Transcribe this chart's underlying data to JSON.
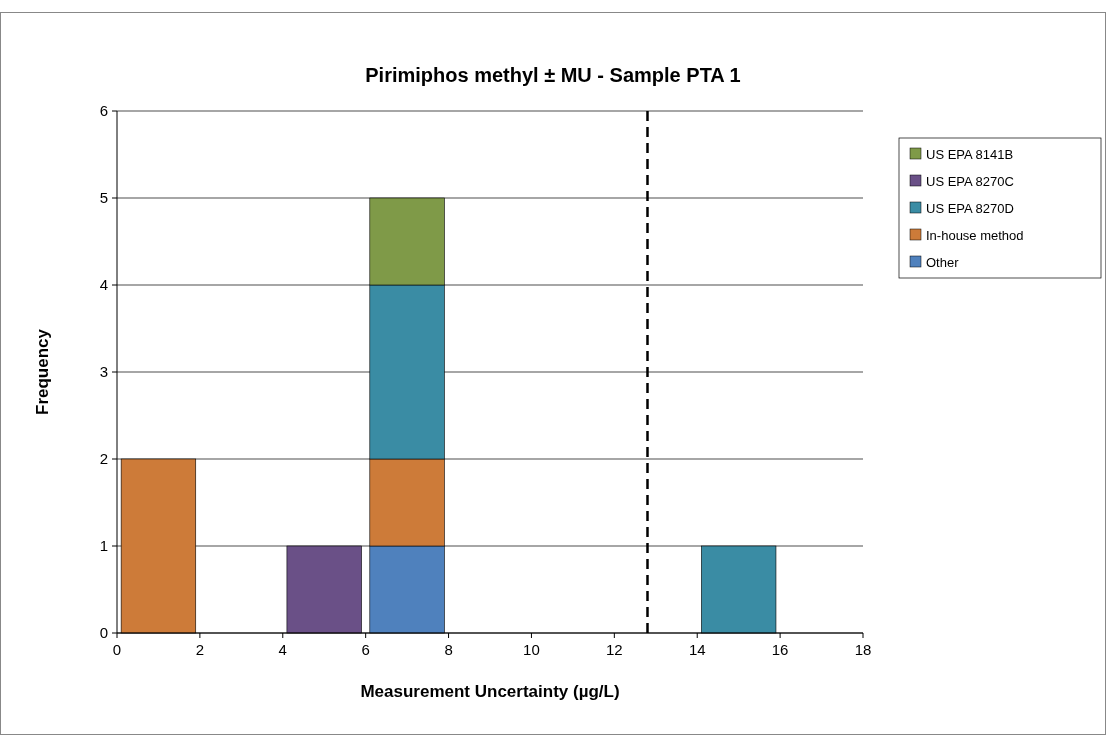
{
  "chart_data": {
    "type": "bar",
    "title": "Pirimiphos methyl ± MU - Sample PTA 1",
    "xlabel": "Measurement Uncertainty (µg/L)",
    "ylabel": "Frequency",
    "x": [
      1,
      5,
      7,
      15
    ],
    "stacked": true,
    "series": [
      {
        "name": "Other",
        "color": "#4f81bd",
        "values": [
          0,
          0,
          1,
          0
        ]
      },
      {
        "name": "In-house method",
        "color": "#cd7b39",
        "values": [
          2,
          0,
          1,
          0
        ]
      },
      {
        "name": "US EPA 8270D",
        "color": "#3a8ca4",
        "values": [
          0,
          0,
          2,
          1
        ]
      },
      {
        "name": "US EPA 8270C",
        "color": "#6a5087",
        "values": [
          0,
          1,
          0,
          0
        ]
      },
      {
        "name": "US EPA 8141B",
        "color": "#7f9a48",
        "values": [
          0,
          0,
          1,
          0
        ]
      }
    ],
    "xlim": [
      0,
      18
    ],
    "xticks": [
      0,
      2,
      4,
      6,
      8,
      10,
      12,
      14,
      16,
      18
    ],
    "ylim": [
      0,
      6
    ],
    "yticks": [
      0,
      1,
      2,
      3,
      4,
      5,
      6
    ],
    "grid": "y",
    "legend": "top right",
    "ref_lines": [
      {
        "axis": "x",
        "value": 12.8,
        "color": "#000000",
        "line_style": "dashed"
      }
    ]
  }
}
